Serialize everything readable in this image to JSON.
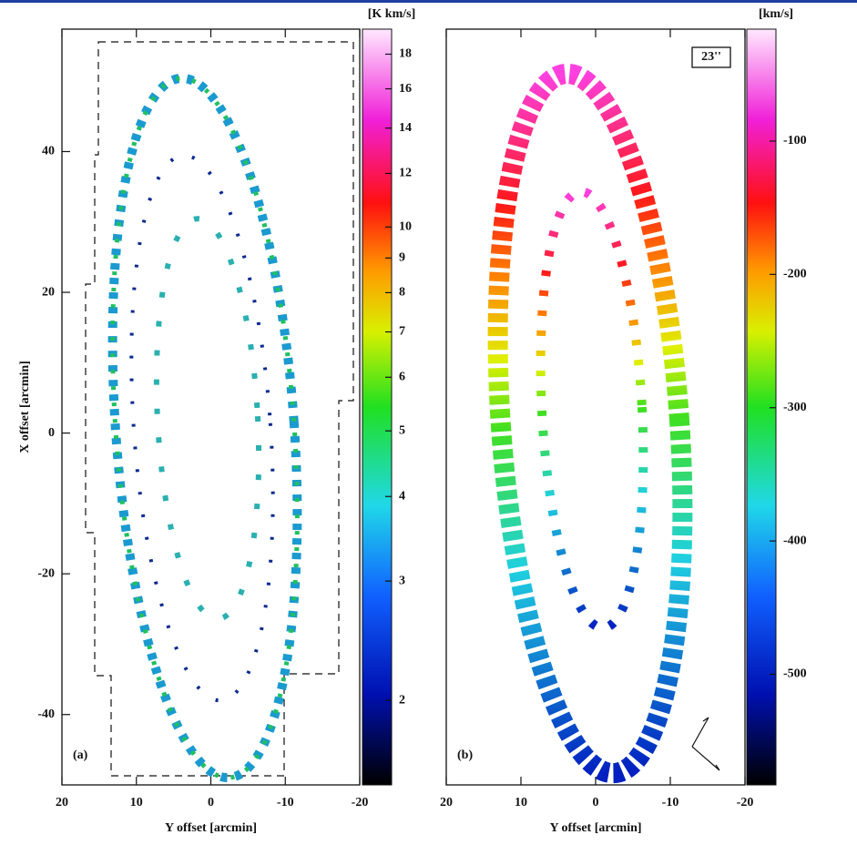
{
  "chart_data": [
    {
      "type": "map",
      "panel_label": "(a)",
      "xlabel": "Y offset [arcmin]",
      "ylabel": "X offset [arcmin]",
      "xlim": [
        20,
        -20
      ],
      "ylim": [
        -50,
        57.4
      ],
      "xticks": [
        20,
        10,
        0,
        -10,
        -20
      ],
      "yticks": [
        -40,
        -20,
        0,
        20,
        40
      ],
      "colorbar": {
        "label": "[K km/s]",
        "lim": [
          1.5,
          19.6
        ],
        "log": true,
        "ticks": [
          2,
          3,
          4,
          5,
          6,
          7,
          8,
          9,
          10,
          12,
          14,
          16,
          18
        ]
      }
    },
    {
      "type": "map",
      "panel_label": "(b)",
      "beam_label": "23''",
      "xlabel": "Y offset [arcmin]",
      "xlim": [
        20,
        -20
      ],
      "ylim": [
        -50,
        57.4
      ],
      "xticks": [
        20,
        10,
        0,
        -10,
        -20
      ],
      "colorbar": {
        "label": "[km/s]",
        "lim": [
          -583,
          -16
        ],
        "log": false,
        "ticks": [
          -500,
          -400,
          -300,
          -200,
          -100
        ]
      }
    }
  ]
}
